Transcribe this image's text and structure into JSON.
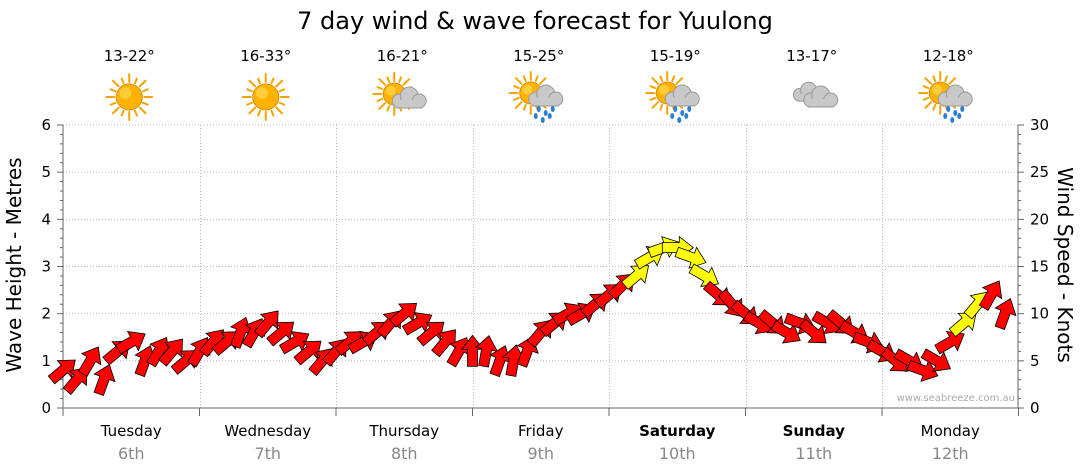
{
  "chart_data": {
    "type": "line",
    "title": "7 day wind & wave forecast for Yuulong",
    "ylabel_left": "Wave Height - Metres",
    "ylabel_right": "Wind Speed - Knots",
    "ylim_left": [
      0,
      6
    ],
    "ylim_right": [
      0,
      30
    ],
    "y_ticks_left": [
      "0",
      "1",
      "2",
      "3",
      "4",
      "5",
      "6"
    ],
    "y_ticks_right": [
      "0",
      "5",
      "10",
      "15",
      "20",
      "25",
      "30"
    ],
    "grid": true,
    "credit": "www.seabreeze.com.au",
    "days": [
      {
        "day": "Tuesday",
        "date": "6th",
        "temp": "13-22°",
        "weather_icon": "sunny-icon",
        "bold": false
      },
      {
        "day": "Wednesday",
        "date": "7th",
        "temp": "16-33°",
        "weather_icon": "sunny-icon",
        "bold": false
      },
      {
        "day": "Thursday",
        "date": "8th",
        "temp": "16-21°",
        "weather_icon": "partly-cloudy-icon",
        "bold": false
      },
      {
        "day": "Friday",
        "date": "9th",
        "temp": "15-25°",
        "weather_icon": "sun-showers-icon",
        "bold": false
      },
      {
        "day": "Saturday",
        "date": "10th",
        "temp": "15-19°",
        "weather_icon": "sun-showers-icon",
        "bold": true
      },
      {
        "day": "Sunday",
        "date": "11th",
        "temp": "13-17°",
        "weather_icon": "cloudy-icon",
        "bold": true
      },
      {
        "day": "Monday",
        "date": "12th",
        "temp": "12-18°",
        "weather_icon": "sun-showers-icon",
        "bold": false
      }
    ],
    "wind_series": {
      "name": "Wind",
      "unit": "knots",
      "color_normal": "#ff0000",
      "color_strong": "#ffff00",
      "x_day": [
        0.0,
        0.1,
        0.2,
        0.3,
        0.4,
        0.5,
        0.6,
        0.7,
        0.8,
        0.9,
        1.0,
        1.1,
        1.2,
        1.3,
        1.4,
        1.5,
        1.6,
        1.7,
        1.8,
        1.9,
        2.0,
        2.1,
        2.2,
        2.3,
        2.4,
        2.5,
        2.6,
        2.7,
        2.8,
        2.9,
        3.0,
        3.1,
        3.2,
        3.3,
        3.4,
        3.5,
        3.6,
        3.7,
        3.8,
        3.9,
        4.0,
        4.1,
        4.2,
        4.3,
        4.4,
        4.5,
        4.6,
        4.7,
        4.8,
        4.9,
        5.0,
        5.1,
        5.2,
        5.3,
        5.4,
        5.5,
        5.6,
        5.7,
        5.8,
        5.9,
        6.0,
        6.1,
        6.2,
        6.3,
        6.4,
        6.5,
        6.6,
        6.7,
        6.8,
        6.9
      ],
      "values": [
        4,
        3,
        5,
        3,
        6,
        7,
        5,
        6,
        6,
        5,
        6,
        7,
        7,
        8,
        8,
        9,
        8,
        7,
        6,
        5,
        6,
        7,
        7,
        8,
        9,
        10,
        9,
        8,
        7,
        6,
        6,
        6,
        5,
        5,
        6,
        8,
        9,
        10,
        10,
        11,
        12,
        13,
        14,
        16,
        17,
        17,
        16,
        14,
        12,
        11,
        10,
        9,
        9,
        8,
        9,
        8,
        9,
        9,
        8,
        7,
        6,
        5,
        5,
        4,
        5,
        7,
        9,
        11,
        12,
        10
      ],
      "direction_deg": [
        230,
        220,
        210,
        200,
        230,
        240,
        200,
        210,
        220,
        230,
        210,
        220,
        230,
        200,
        210,
        220,
        230,
        240,
        230,
        220,
        220,
        230,
        240,
        230,
        220,
        230,
        240,
        230,
        220,
        210,
        180,
        190,
        200,
        190,
        200,
        220,
        230,
        240,
        240,
        230,
        230,
        225,
        230,
        240,
        250,
        270,
        290,
        300,
        310,
        320,
        310,
        300,
        310,
        300,
        290,
        310,
        300,
        310,
        300,
        290,
        300,
        310,
        300,
        290,
        300,
        240,
        230,
        220,
        210,
        200
      ],
      "strong": [
        false,
        false,
        false,
        false,
        false,
        false,
        false,
        false,
        false,
        false,
        false,
        false,
        false,
        false,
        false,
        false,
        false,
        false,
        false,
        false,
        false,
        false,
        false,
        false,
        false,
        false,
        false,
        false,
        false,
        false,
        false,
        false,
        false,
        false,
        false,
        false,
        false,
        false,
        false,
        false,
        false,
        false,
        true,
        true,
        true,
        true,
        true,
        true,
        false,
        false,
        false,
        false,
        false,
        false,
        false,
        false,
        false,
        false,
        false,
        false,
        false,
        false,
        false,
        false,
        false,
        false,
        true,
        true,
        false,
        false
      ]
    }
  }
}
